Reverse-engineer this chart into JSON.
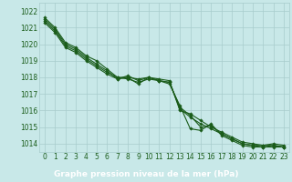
{
  "x": [
    0,
    1,
    2,
    3,
    4,
    5,
    6,
    7,
    8,
    9,
    10,
    11,
    12,
    13,
    14,
    15,
    16,
    17,
    18,
    19,
    20,
    21,
    22,
    23
  ],
  "series": [
    [
      1021.6,
      1021.0,
      1020.1,
      1019.8,
      1019.3,
      1019.0,
      1018.5,
      1018.0,
      1018.0,
      1017.9,
      1018.0,
      1017.9,
      1017.8,
      1016.0,
      1015.8,
      1015.4,
      1015.0,
      1014.7,
      1014.4,
      1014.1,
      1014.0,
      1013.9,
      1014.0,
      1013.9
    ],
    [
      1021.5,
      1020.9,
      1020.0,
      1019.7,
      1019.2,
      1018.8,
      1018.4,
      1017.9,
      1018.1,
      1017.8,
      1018.0,
      1017.8,
      1017.7,
      1016.1,
      1015.6,
      1015.2,
      1014.9,
      1014.6,
      1014.3,
      1014.0,
      1013.9,
      1013.9,
      1013.9,
      1013.8
    ],
    [
      1021.4,
      1020.8,
      1019.9,
      1019.6,
      1019.1,
      1018.7,
      1018.3,
      1018.0,
      1017.9,
      1017.7,
      1017.9,
      1017.8,
      1017.6,
      1016.3,
      1014.9,
      1014.8,
      1015.2,
      1014.5,
      1014.2,
      1013.9,
      1013.8,
      1013.8,
      1013.8,
      1013.8
    ],
    [
      1021.3,
      1020.7,
      1019.8,
      1019.5,
      1019.0,
      1018.6,
      1018.2,
      1017.9,
      1018.0,
      1017.6,
      1018.0,
      1017.8,
      1017.7,
      1016.2,
      1015.7,
      1015.0,
      1015.1,
      1014.6,
      1014.3,
      1014.0,
      1013.9,
      1013.8,
      1013.9,
      1013.8
    ]
  ],
  "ylim": [
    1013.5,
    1022.5
  ],
  "yticks": [
    1014,
    1015,
    1016,
    1017,
    1018,
    1019,
    1020,
    1021,
    1022
  ],
  "xlim": [
    -0.5,
    23.5
  ],
  "xticks": [
    0,
    1,
    2,
    3,
    4,
    5,
    6,
    7,
    8,
    9,
    10,
    11,
    12,
    13,
    14,
    15,
    16,
    17,
    18,
    19,
    20,
    21,
    22,
    23
  ],
  "line_color": "#1a5c1a",
  "marker": "D",
  "marker_size": 1.8,
  "linewidth": 0.8,
  "bg_color": "#c8e8e8",
  "grid_color": "#a8cccc",
  "xlabel": "Graphe pression niveau de la mer (hPa)",
  "xlabel_fontsize": 6.5,
  "tick_fontsize": 5.5,
  "xlabel_color": "#ffffff",
  "tick_color": "#1a5c1a",
  "xlabel_bg": "#2d6a2d"
}
